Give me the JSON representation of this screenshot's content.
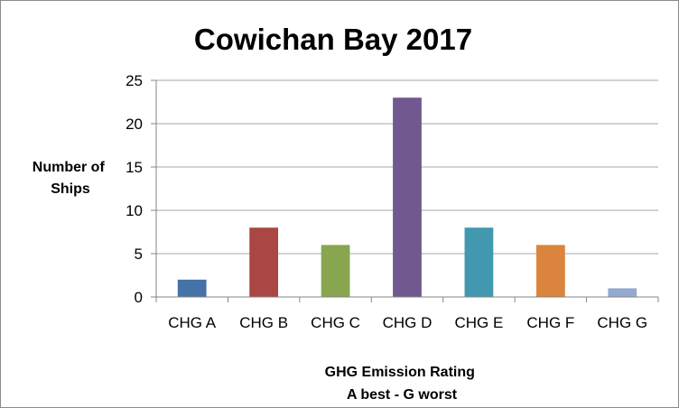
{
  "chart_data": {
    "type": "bar",
    "title": "Cowichan Bay 2017",
    "categories": [
      "CHG A",
      "CHG B",
      "CHG C",
      "CHG D",
      "CHG E",
      "CHG F",
      "CHG G"
    ],
    "values": [
      2,
      8,
      6,
      23,
      8,
      6,
      1
    ],
    "colors": [
      "#4572a7",
      "#aa4643",
      "#89a54e",
      "#71588f",
      "#4198af",
      "#db843d",
      "#93a9cf"
    ],
    "ylabel_lines": [
      "Number of",
      "Ships"
    ],
    "xlabel_lines": [
      "GHG Emission Rating",
      "A best - G worst"
    ],
    "ylim": [
      0,
      25
    ],
    "yticks": [
      0,
      5,
      10,
      15,
      20,
      25
    ],
    "grid": true,
    "legend": "none"
  }
}
